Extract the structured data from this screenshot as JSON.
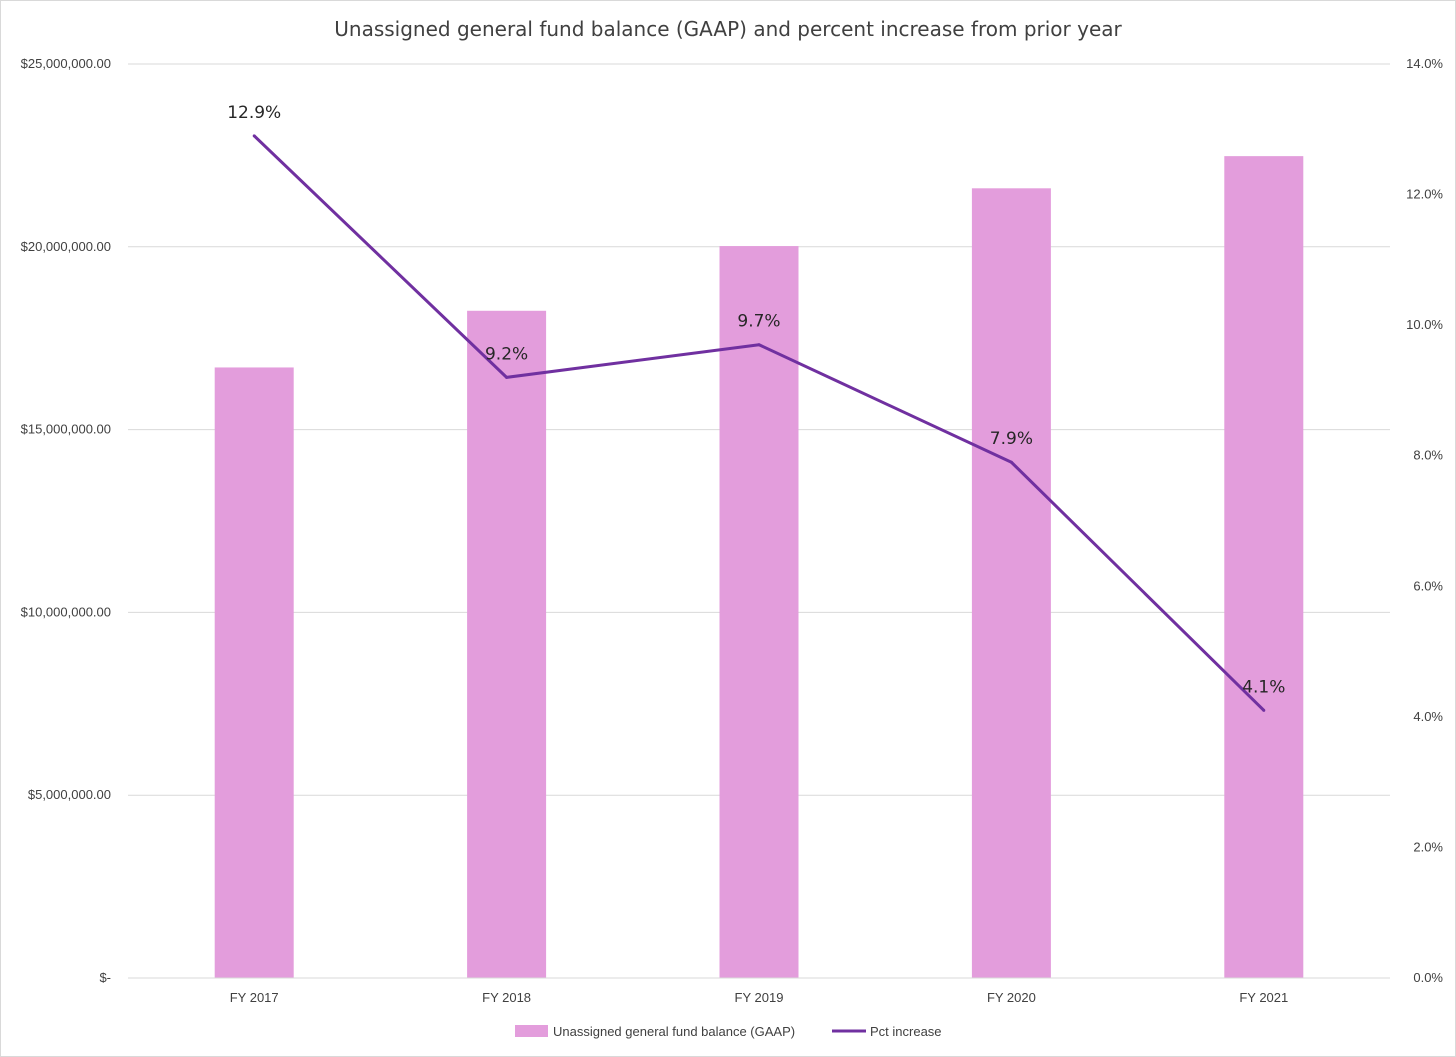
{
  "chart_data": {
    "type": "bar+line",
    "title": "Unassigned general fund balance (GAAP) and percent increase from prior year",
    "categories": [
      "FY 2017",
      "FY 2018",
      "FY 2019",
      "FY 2020",
      "FY 2021"
    ],
    "series": [
      {
        "name": "Unassigned general fund balance (GAAP)",
        "type": "bar",
        "axis": "left",
        "color": "#e39ddc",
        "values": [
          16700000,
          18250000,
          20020000,
          21600000,
          22480000
        ]
      },
      {
        "name": "Pct increase",
        "type": "line",
        "axis": "right",
        "color": "#7030a0",
        "values": [
          12.9,
          9.2,
          9.7,
          7.9,
          4.1
        ],
        "data_labels": [
          "12.9%",
          "9.2%",
          "9.7%",
          "7.9%",
          "4.1%"
        ]
      }
    ],
    "y_left": {
      "ylim": [
        0,
        25000000
      ],
      "ticks": [
        0,
        5000000,
        10000000,
        15000000,
        20000000,
        25000000
      ],
      "tick_labels": [
        "$-",
        "$5,000,000.00",
        "$10,000,000.00",
        "$15,000,000.00",
        "$20,000,000.00",
        "$25,000,000.00"
      ]
    },
    "y_right": {
      "ylim": [
        0,
        14
      ],
      "ticks": [
        0,
        2,
        4,
        6,
        8,
        10,
        12,
        14
      ],
      "tick_labels": [
        "0.0%",
        "2.0%",
        "4.0%",
        "6.0%",
        "8.0%",
        "10.0%",
        "12.0%",
        "14.0%"
      ]
    },
    "grid": true,
    "legend": "bottom",
    "gridline_color": "#d9d9d9"
  }
}
